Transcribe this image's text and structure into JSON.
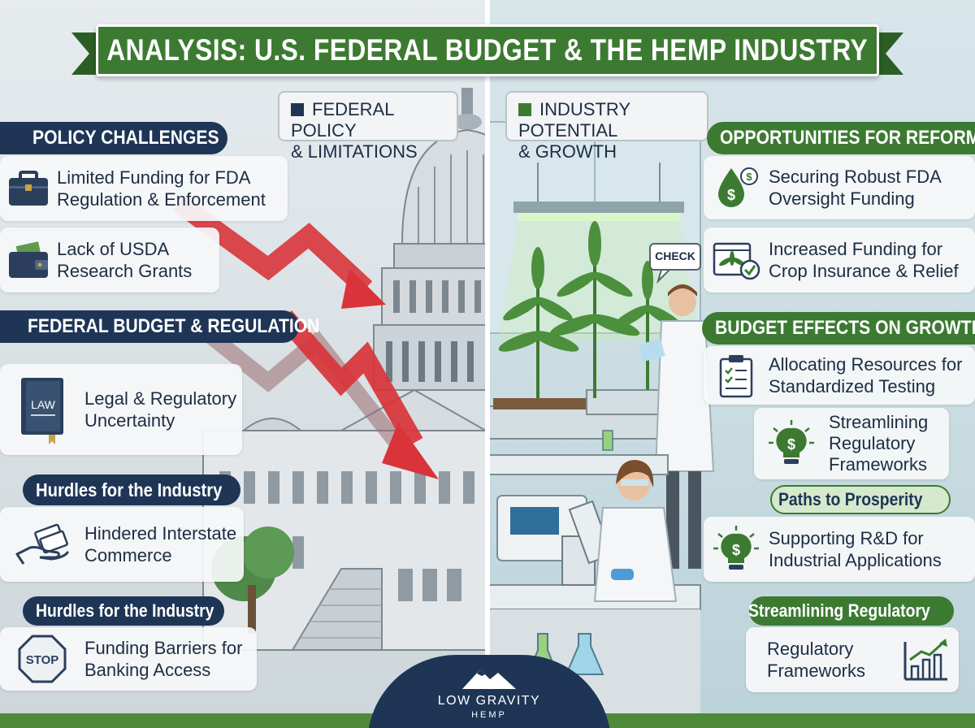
{
  "title": "ANALYSIS: U.S. FEDERAL BUDGET & THE HEMP INDUSTRY",
  "colors": {
    "navy": "#1e3556",
    "green": "#3c7a32",
    "arrow_red": "#d8343a"
  },
  "left_chip": {
    "line1": "FEDERAL POLICY",
    "line2": "& LIMITATIONS"
  },
  "right_chip": {
    "line1": "INDUSTRY POTENTIAL",
    "line2": "& GROWTH"
  },
  "left": {
    "policy_header": "POLICY CHALLENGES",
    "policy_items": [
      {
        "icon": "briefcase-icon",
        "text": "Limited Funding for FDA\nRegulation & Enforcement"
      },
      {
        "icon": "wallet-icon",
        "text": "Lack of USDA\nResearch Grants"
      }
    ],
    "budget_header": "FEDERAL BUDGET & REGULATION",
    "budget_items": [
      {
        "icon": "law-book-icon",
        "icon_label": "LAW",
        "text": "Legal & Regulatory\nUncertainty"
      }
    ],
    "hurdles1_header": "Hurdles for the Industry",
    "hurdles1_items": [
      {
        "icon": "hand-money-icon",
        "text": "Hindered Interstate\nCommerce"
      }
    ],
    "hurdles2_header": "Hurdles for the Industry",
    "hurdles2_items": [
      {
        "icon": "stop-sign-icon",
        "icon_label": "STOP",
        "text": "Funding Barriers for\nBanking Access"
      }
    ]
  },
  "right": {
    "reform_header": "OPPORTUNITIES FOR REFORM",
    "reform_items": [
      {
        "icon": "dollar-drop-icon",
        "text": "Securing Robust FDA\nOversight Funding"
      },
      {
        "icon": "crop-check-icon",
        "text": "Increased Funding for\nCrop Insurance & Relief"
      }
    ],
    "growth_header": "BUDGET EFFECTS ON GROWTH",
    "growth_items": [
      {
        "icon": "checklist-icon",
        "text": "Allocating Resources for\nStandardized Testing"
      },
      {
        "icon": "lightbulb-dollar-icon",
        "text": "Streamlining\nRegulatory\nFrameworks"
      }
    ],
    "prosperity_header": "Paths to Prosperity",
    "prosperity_items": [
      {
        "icon": "lightbulb-dollar-icon",
        "text": "Supporting R&D for\nIndustrial Applications"
      }
    ],
    "streamline_header": "Streamlining Regulatory",
    "streamline_items": [
      {
        "icon": "bar-chart-growth-icon",
        "text": "Regulatory\nFrameworks"
      }
    ]
  },
  "scene": {
    "check_bubble": "CHECK"
  },
  "logo": {
    "line1": "LOW GRAVITY",
    "line2": "HEMP"
  }
}
